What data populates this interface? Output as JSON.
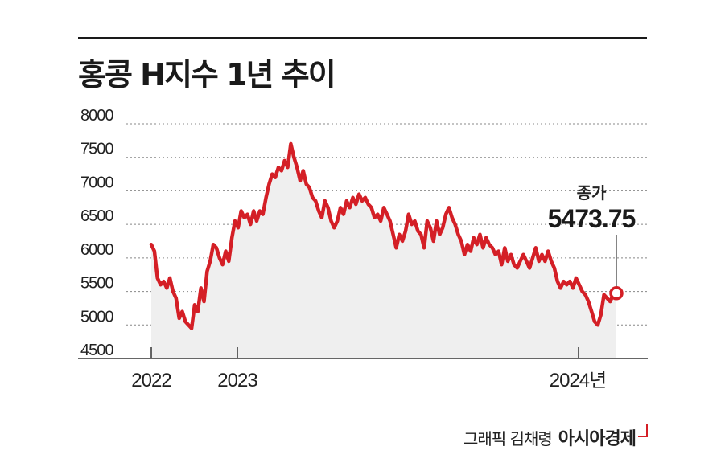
{
  "chart_data": {
    "type": "line",
    "title": "홍콩 H지수 1년 추이",
    "y_ticks": [
      "8000",
      "7500",
      "7000",
      "6500",
      "6000",
      "5500",
      "5000",
      "4500"
    ],
    "x_ticks": [
      "2022",
      "2023",
      "2024년"
    ],
    "ylim": [
      4500,
      8000
    ],
    "grid": true,
    "line_color": "#d41f26",
    "area_color": "#efefef",
    "series": [
      {
        "values": [
          6200,
          6100,
          5700,
          5600,
          5650,
          5550,
          5700,
          5500,
          5400,
          5100,
          5200,
          5050,
          5000,
          4950,
          5300,
          5200,
          5550,
          5350,
          5800,
          5950,
          6200,
          6150,
          6000,
          5900,
          6100,
          5950,
          6300,
          6550,
          6450,
          6700,
          6600,
          6650,
          6500,
          6700,
          6550,
          6700,
          6650,
          6900,
          7100,
          7250,
          7200,
          7350,
          7300,
          7450,
          7350,
          7700,
          7500,
          7350,
          7150,
          7300,
          7100,
          7050,
          6900,
          6850,
          6700,
          6600,
          6850,
          6750,
          6550,
          6450,
          6550,
          6750,
          6650,
          6850,
          6750,
          6900,
          6800,
          6950,
          6850,
          6900,
          6800,
          6750,
          6600,
          6650,
          6550,
          6750,
          6650,
          6550,
          6350,
          6150,
          6350,
          6250,
          6400,
          6650,
          6500,
          6550,
          6400,
          6350,
          6150,
          6550,
          6450,
          6250,
          6550,
          6350,
          6450,
          6650,
          6750,
          6600,
          6500,
          6350,
          6250,
          6050,
          6200,
          6100,
          6300,
          6200,
          6350,
          6150,
          6300,
          6200,
          6150,
          6050,
          6100,
          5900,
          6150,
          5950,
          6050,
          5900,
          5850,
          5950,
          6050,
          5950,
          5850,
          6000,
          6150,
          5950,
          6050,
          5950,
          6100,
          5950,
          5850,
          5650,
          5550,
          5650,
          5600,
          5650,
          5550,
          5700,
          5600,
          5500,
          5450,
          5350,
          5200,
          5050,
          5000,
          5150,
          5450,
          5400,
          5350,
          5450,
          5473.75
        ]
      }
    ],
    "last_value": 5473.75
  },
  "callout": {
    "label": "종가",
    "value": "5473.75"
  },
  "credit": {
    "text": "그래픽 김채령",
    "brand": "아시아경제"
  }
}
